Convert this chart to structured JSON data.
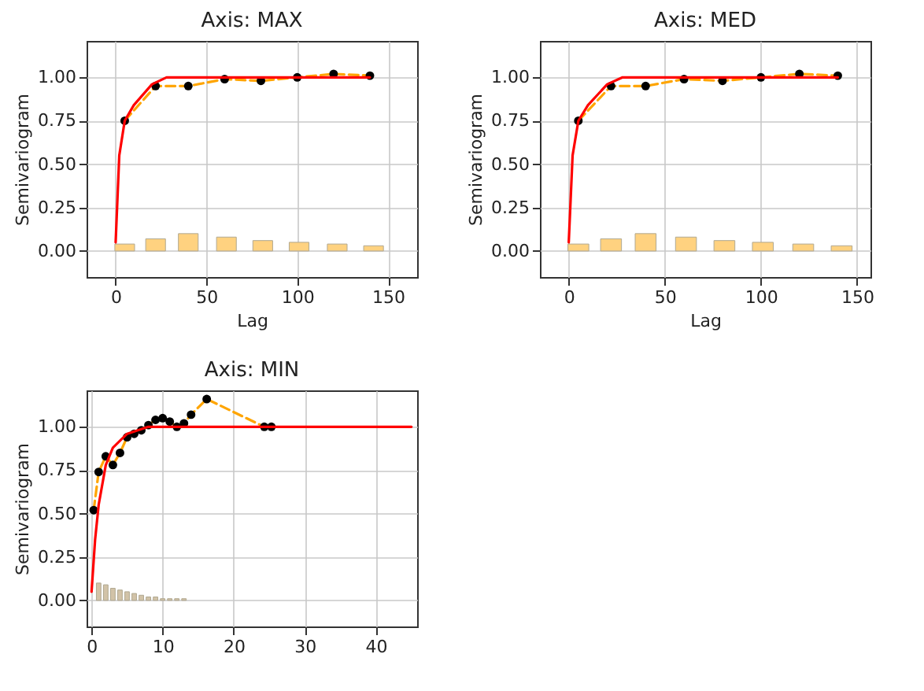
{
  "chart_data": [
    {
      "type": "line",
      "title": "Axis: MAX",
      "xlabel": "Lag",
      "ylabel": "Semivariogram",
      "xlim": [
        -16,
        166
      ],
      "ylim": [
        -0.15,
        1.21
      ],
      "xticks": [
        0,
        50,
        100,
        150
      ],
      "yticks": [
        {
          "value": 0,
          "label": "0.00"
        },
        {
          "value": 0.25,
          "label": "0.25"
        },
        {
          "value": 0.5,
          "label": "0.50"
        },
        {
          "value": 0.75,
          "label": "0.75"
        },
        {
          "value": 1,
          "label": "1.00"
        }
      ],
      "grid": true,
      "series": [
        {
          "type": "bar",
          "color": "#ffd280",
          "x": [
            5,
            22,
            40,
            61,
            81,
            101,
            122,
            142
          ],
          "values": [
            0.04,
            0.07,
            0.1,
            0.08,
            0.06,
            0.05,
            0.04,
            0.03
          ]
        },
        {
          "type": "line",
          "color": "#ffa500",
          "line_style": "dashed",
          "x": [
            5,
            22,
            40,
            60,
            80,
            100,
            120,
            140
          ],
          "values": [
            0.75,
            0.95,
            0.95,
            0.99,
            0.98,
            1.0,
            1.02,
            1.01
          ]
        },
        {
          "type": "scatter",
          "color": "#000000",
          "marker": "circle",
          "x": [
            5,
            22,
            40,
            60,
            80,
            100,
            120,
            140
          ],
          "values": [
            0.75,
            0.95,
            0.95,
            0.99,
            0.98,
            1.0,
            1.02,
            1.01
          ]
        },
        {
          "type": "line",
          "color": "#ff0000",
          "line_style": "solid",
          "x": [
            0,
            2,
            5,
            10,
            20,
            28,
            140
          ],
          "values": [
            0.05,
            0.55,
            0.75,
            0.84,
            0.96,
            1.0,
            1.0
          ]
        }
      ]
    },
    {
      "type": "line",
      "title": "Axis: MED",
      "xlabel": "Lag",
      "ylabel": "Semivariogram",
      "xlim": [
        -15,
        157
      ],
      "ylim": [
        -0.15,
        1.21
      ],
      "xticks": [
        0,
        50,
        100,
        150
      ],
      "yticks": [
        {
          "value": 0,
          "label": "0.00"
        },
        {
          "value": 0.25,
          "label": "0.25"
        },
        {
          "value": 0.5,
          "label": "0.50"
        },
        {
          "value": 0.75,
          "label": "0.75"
        },
        {
          "value": 1,
          "label": "1.00"
        }
      ],
      "grid": true,
      "series": [
        {
          "type": "bar",
          "color": "#ffd280",
          "x": [
            5,
            22,
            40,
            61,
            81,
            101,
            122,
            142
          ],
          "values": [
            0.04,
            0.07,
            0.1,
            0.08,
            0.06,
            0.05,
            0.04,
            0.03
          ]
        },
        {
          "type": "line",
          "color": "#ffa500",
          "line_style": "dashed",
          "x": [
            5,
            22,
            40,
            60,
            80,
            100,
            120,
            140
          ],
          "values": [
            0.75,
            0.95,
            0.95,
            0.99,
            0.98,
            1.0,
            1.02,
            1.01
          ]
        },
        {
          "type": "scatter",
          "color": "#000000",
          "marker": "circle",
          "x": [
            5,
            22,
            40,
            60,
            80,
            100,
            120,
            140
          ],
          "values": [
            0.75,
            0.95,
            0.95,
            0.99,
            0.98,
            1.0,
            1.02,
            1.01
          ]
        },
        {
          "type": "line",
          "color": "#ff0000",
          "line_style": "solid",
          "x": [
            0,
            2,
            5,
            10,
            20,
            28,
            140
          ],
          "values": [
            0.05,
            0.55,
            0.75,
            0.84,
            0.96,
            1.0,
            1.0
          ]
        }
      ]
    },
    {
      "type": "line",
      "title": "Axis: MIN",
      "ylabel": "Semivariogram",
      "xlim": [
        -0.7,
        45.8
      ],
      "ylim": [
        -0.15,
        1.21
      ],
      "xticks": [
        0,
        10,
        20,
        30,
        40
      ],
      "yticks": [
        {
          "value": 0,
          "label": "0.00"
        },
        {
          "value": 0.25,
          "label": "0.25"
        },
        {
          "value": 0.5,
          "label": "0.50"
        },
        {
          "value": 0.75,
          "label": "0.75"
        },
        {
          "value": 1,
          "label": "1.00"
        }
      ],
      "grid": true,
      "series": [
        {
          "type": "bar",
          "color": "#d2c3a8",
          "x": [
            1,
            2,
            3,
            4,
            5,
            6,
            7,
            8,
            9,
            10,
            11,
            12,
            13
          ],
          "values": [
            0.1,
            0.09,
            0.07,
            0.06,
            0.05,
            0.04,
            0.03,
            0.02,
            0.02,
            0.01,
            0.01,
            0.01,
            0.01
          ]
        },
        {
          "type": "line",
          "color": "#ffa500",
          "line_style": "dashed",
          "x": [
            0.3,
            1,
            2,
            3,
            4,
            5,
            6,
            7,
            8,
            9,
            10,
            11,
            12,
            13,
            14,
            16.2,
            24.3,
            25.3
          ],
          "values": [
            0.52,
            0.74,
            0.83,
            0.78,
            0.85,
            0.94,
            0.96,
            0.98,
            1.01,
            1.04,
            1.05,
            1.03,
            1.0,
            1.02,
            1.07,
            1.16,
            1.0,
            1.0
          ]
        },
        {
          "type": "scatter",
          "color": "#000000",
          "marker": "circle",
          "x": [
            0.3,
            1,
            2,
            3,
            4,
            5,
            6,
            7,
            8,
            9,
            10,
            11,
            12,
            13,
            14,
            16.2,
            24.3,
            25.3
          ],
          "values": [
            0.52,
            0.74,
            0.83,
            0.78,
            0.85,
            0.94,
            0.96,
            0.98,
            1.01,
            1.04,
            1.05,
            1.03,
            1.0,
            1.02,
            1.07,
            1.16,
            1.0,
            1.0
          ]
        },
        {
          "type": "line",
          "color": "#ff0000",
          "line_style": "solid",
          "x": [
            0,
            0.5,
            1,
            2,
            3,
            5,
            8,
            45
          ],
          "values": [
            0.05,
            0.35,
            0.55,
            0.78,
            0.88,
            0.96,
            1.0,
            1.0
          ]
        }
      ]
    }
  ]
}
